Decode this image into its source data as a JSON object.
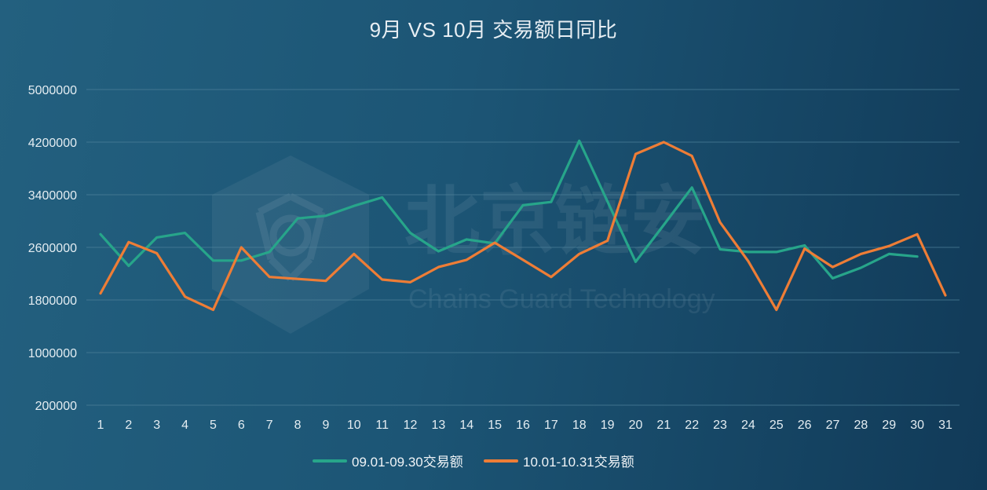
{
  "watermark": {
    "logo_text_cn": "北京链安",
    "logo_text_en": "Chains Guard Technology"
  },
  "chart_data": {
    "type": "line",
    "title": "9月 VS 10月 交易额日同比",
    "xlabel": "",
    "ylabel": "",
    "categories": [
      "1",
      "2",
      "3",
      "4",
      "5",
      "6",
      "7",
      "8",
      "9",
      "10",
      "11",
      "12",
      "13",
      "14",
      "15",
      "16",
      "17",
      "18",
      "19",
      "20",
      "21",
      "22",
      "23",
      "24",
      "25",
      "26",
      "27",
      "28",
      "29",
      "30",
      "31"
    ],
    "y_ticks": [
      200000,
      1000000,
      1800000,
      2600000,
      3400000,
      4200000,
      5000000
    ],
    "ylim": [
      200000,
      5000000
    ],
    "grid": true,
    "legend_position": "bottom-center",
    "series": [
      {
        "name": "09.01-09.30交易额",
        "color": "#27a58a",
        "values": [
          2800000,
          2320000,
          2750000,
          2820000,
          2400000,
          2400000,
          2530000,
          3040000,
          3080000,
          3230000,
          3360000,
          2820000,
          2540000,
          2720000,
          2660000,
          3240000,
          3290000,
          4220000,
          3300000,
          2380000,
          2940000,
          3510000,
          2570000,
          2530000,
          2530000,
          2630000,
          2130000,
          2290000,
          2500000,
          2460000,
          null
        ]
      },
      {
        "name": "10.01-10.31交易额",
        "color": "#ee7d36",
        "values": [
          1900000,
          2680000,
          2510000,
          1850000,
          1650000,
          2600000,
          2150000,
          2120000,
          2090000,
          2500000,
          2110000,
          2070000,
          2300000,
          2410000,
          2670000,
          2410000,
          2150000,
          2500000,
          2700000,
          4020000,
          4200000,
          3990000,
          2980000,
          2390000,
          1650000,
          2580000,
          2300000,
          2500000,
          2620000,
          2800000,
          1870000
        ]
      }
    ]
  }
}
